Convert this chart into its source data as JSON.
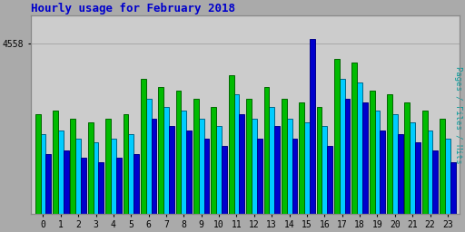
{
  "title": "Hourly usage for February 2018",
  "ylabel": "Pages / Files / Hits",
  "hours": [
    0,
    1,
    2,
    3,
    4,
    5,
    6,
    7,
    8,
    9,
    10,
    11,
    12,
    13,
    14,
    15,
    16,
    17,
    18,
    19,
    20,
    21,
    22,
    23
  ],
  "pages_vals": [
    4200,
    4220,
    4180,
    4160,
    4180,
    4200,
    4380,
    4340,
    4320,
    4280,
    4240,
    4400,
    4280,
    4340,
    4280,
    4260,
    4240,
    4480,
    4460,
    4320,
    4300,
    4260,
    4220,
    4180
  ],
  "files_vals": [
    4100,
    4120,
    4080,
    4060,
    4080,
    4100,
    4280,
    4240,
    4220,
    4180,
    4140,
    4300,
    4180,
    4240,
    4180,
    4160,
    4140,
    4380,
    4360,
    4220,
    4200,
    4160,
    4120,
    4080
  ],
  "hits_vals": [
    4000,
    4020,
    3980,
    3960,
    3980,
    4000,
    4180,
    4140,
    4120,
    4080,
    4040,
    4200,
    4080,
    4140,
    4080,
    4580,
    4040,
    4280,
    4260,
    4120,
    4100,
    4060,
    4020,
    3960
  ],
  "pages_color": "#00bb00",
  "files_color": "#00ccff",
  "hits_color": "#0000cc",
  "pages_edge": "#006600",
  "files_edge": "#006688",
  "hits_edge": "#000088",
  "bg_color": "#aaaaaa",
  "plot_bg_color": "#cccccc",
  "title_color": "#0000cc",
  "ylabel_color": "#009999",
  "ytick_val": 4558,
  "ymin": 3700,
  "ymax": 4700,
  "bar_width": 0.3,
  "title_fontsize": 9,
  "tick_fontsize": 7
}
